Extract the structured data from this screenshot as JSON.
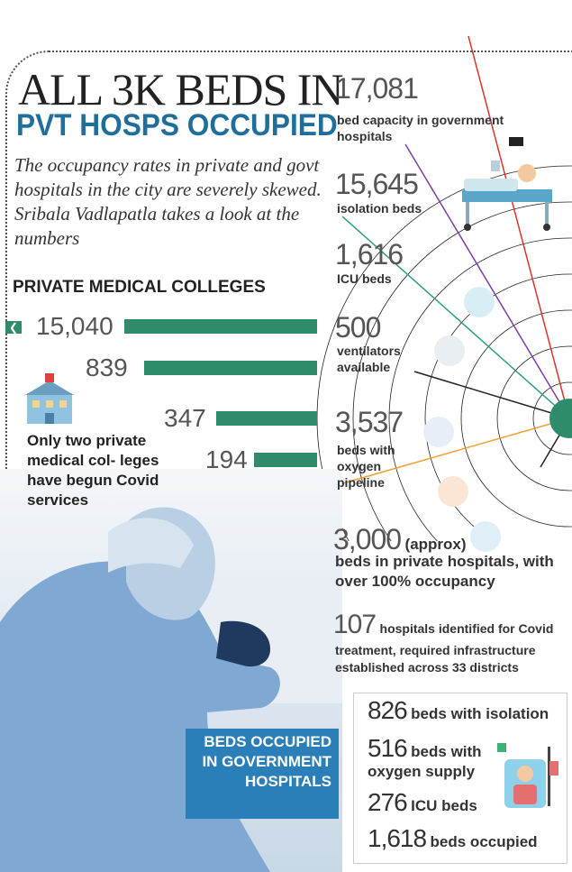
{
  "title_line1": "ALL 3K BEDS IN",
  "title_line2": "PVT HOSPS OCCUPIED",
  "intro": "The occupancy rates in private and govt hospitals in the city are severely skewed. Sribala Vadlapatla takes a look at the numbers",
  "private_colleges": {
    "title": "PRIVATE MEDICAL COLLEGES",
    "bars": [
      {
        "label": "15,040",
        "value": 15040
      },
      {
        "label": "839",
        "value": 839
      },
      {
        "label": "347",
        "value": 347
      },
      {
        "label": "194",
        "value": 194
      }
    ],
    "note": "Only two private medical col- leges have begun Covid services"
  },
  "stats": [
    {
      "number": "17,081",
      "label": "bed capacity in government hospitals"
    },
    {
      "number": "15,645",
      "label": "isolation beds"
    },
    {
      "number": "1,616",
      "label": "ICU beds"
    },
    {
      "number": "500",
      "label": "ventilators available"
    },
    {
      "number": "3,537",
      "label": "beds with oxygen pipeline"
    }
  ],
  "private_beds": {
    "number": "3,000",
    "suffix": "(approx)",
    "label": "beds in private hospitals, with over 100% occupancy"
  },
  "hospitals_identified": {
    "number": "107",
    "label_1": "hospitals identified for Covid",
    "label_2": "treatment, required infrastructure",
    "label_3": "established across 33 districts"
  },
  "govt_occupied": {
    "box_label": "BEDS OCCUPIED IN GOVERNMENT HOSPITALS",
    "rows": [
      {
        "number": "826",
        "label": "beds with isolation"
      },
      {
        "number": "516",
        "label": "beds with oxygen supply"
      },
      {
        "number": "276",
        "label": "ICU beds"
      },
      {
        "number": "1,618",
        "label": "beds occupied"
      }
    ]
  },
  "colors": {
    "bar": "#2e8c6a",
    "title_blue": "#1f6e9c",
    "box_blue": "#2a7fb8"
  }
}
